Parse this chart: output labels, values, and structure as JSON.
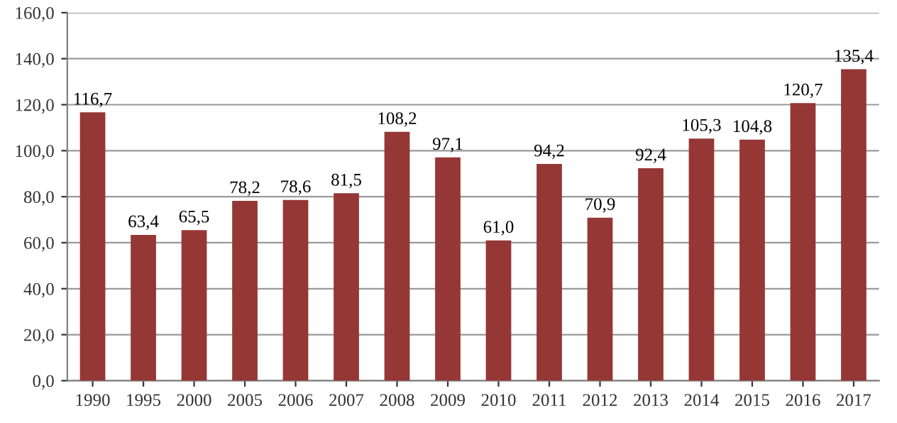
{
  "chart_data": {
    "type": "bar",
    "categories": [
      "1990",
      "1995",
      "2000",
      "2005",
      "2006",
      "2007",
      "2008",
      "2009",
      "2010",
      "2011",
      "2012",
      "2013",
      "2014",
      "2015",
      "2016",
      "2017"
    ],
    "values": [
      116.7,
      63.4,
      65.5,
      78.2,
      78.6,
      81.5,
      108.2,
      97.1,
      61.0,
      94.2,
      70.9,
      92.4,
      105.3,
      104.8,
      120.7,
      135.4
    ],
    "value_labels": [
      "116,7",
      "63,4",
      "65,5",
      "78,2",
      "78,6",
      "81,5",
      "108,2",
      "97,1",
      "61,0",
      "94,2",
      "70,9",
      "92,4",
      "105,3",
      "104,8",
      "120,7",
      "135,4"
    ],
    "color": "#953735",
    "ylim": [
      0,
      160
    ],
    "yticks": [
      {
        "value": 0,
        "label": "0,0"
      },
      {
        "value": 20,
        "label": "20,0"
      },
      {
        "value": 40,
        "label": "40,0"
      },
      {
        "value": 60,
        "label": "60,0"
      },
      {
        "value": 80,
        "label": "80,0"
      },
      {
        "value": 100,
        "label": "100,0"
      },
      {
        "value": 120,
        "label": "120,0"
      },
      {
        "value": 140,
        "label": "140,0"
      },
      {
        "value": 160,
        "label": "160,0"
      }
    ],
    "grid": "y"
  }
}
